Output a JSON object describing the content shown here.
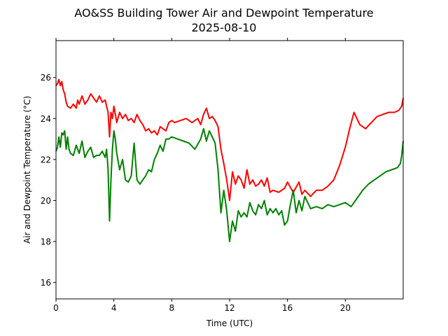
{
  "chart_data": {
    "type": "line",
    "title": "AO&SS Building Tower Air and Dewpoint Temperature",
    "subtitle": "2025-08-10",
    "xlabel": "Time (UTC)",
    "ylabel": "Air and Dewpoint Temperature (°C)",
    "xlim": [
      0,
      24
    ],
    "ylim": [
      15.2,
      27.8
    ],
    "xticks": [
      0,
      4,
      8,
      12,
      16,
      20
    ],
    "yticks": [
      16,
      18,
      20,
      22,
      24,
      26
    ],
    "grid": false,
    "colors": {
      "air": "#ff0000",
      "dewpoint": "#008000"
    },
    "series": [
      {
        "key": "air",
        "color": "#ff0000",
        "x": [
          0,
          0.1,
          0.2,
          0.3,
          0.4,
          0.5,
          0.6,
          0.7,
          0.8,
          1.0,
          1.2,
          1.4,
          1.5,
          1.6,
          1.8,
          2.0,
          2.2,
          2.4,
          2.6,
          2.8,
          3.0,
          3.2,
          3.4,
          3.5,
          3.6,
          3.7,
          3.8,
          3.9,
          4.0,
          4.2,
          4.4,
          4.6,
          4.8,
          5.0,
          5.2,
          5.4,
          5.6,
          5.8,
          6.0,
          6.2,
          6.4,
          6.6,
          6.8,
          7.0,
          7.2,
          7.4,
          7.6,
          7.8,
          8.0,
          8.2,
          8.6,
          9.0,
          9.4,
          9.8,
          10.0,
          10.2,
          10.4,
          10.6,
          10.8,
          11.0,
          11.2,
          11.4,
          11.6,
          11.8,
          12.0,
          12.2,
          12.4,
          12.6,
          12.8,
          13.0,
          13.2,
          13.4,
          13.6,
          13.8,
          14.0,
          14.2,
          14.4,
          14.6,
          14.8,
          15.0,
          15.4,
          15.8,
          16.0,
          16.4,
          16.8,
          17.0,
          17.2,
          17.6,
          18.0,
          18.4,
          18.8,
          19.2,
          19.6,
          20.0,
          20.3,
          20.6,
          20.8,
          21.0,
          21.4,
          21.8,
          22.2,
          22.6,
          23.0,
          23.4,
          23.7,
          23.8,
          23.9,
          24.0
        ],
        "values": [
          25.6,
          25.7,
          25.9,
          25.6,
          25.8,
          25.4,
          25.2,
          24.8,
          24.6,
          24.5,
          24.7,
          24.5,
          24.9,
          24.7,
          25.1,
          24.7,
          24.9,
          25.2,
          25.0,
          24.8,
          25.1,
          24.8,
          24.9,
          24.6,
          24.3,
          23.1,
          24.3,
          24.0,
          24.6,
          23.8,
          24.3,
          24.0,
          24.2,
          23.9,
          24.0,
          23.8,
          24.2,
          23.9,
          23.7,
          23.4,
          23.5,
          23.3,
          23.4,
          23.2,
          23.6,
          23.5,
          23.4,
          23.8,
          23.9,
          23.8,
          23.9,
          24.0,
          23.8,
          24.0,
          23.7,
          24.2,
          24.5,
          24.0,
          24.1,
          23.9,
          23.6,
          22.5,
          21.8,
          21.0,
          20.0,
          21.4,
          20.8,
          21.2,
          21.0,
          20.6,
          21.5,
          20.8,
          21.0,
          20.7,
          20.8,
          21.0,
          20.7,
          21.1,
          20.4,
          20.5,
          20.4,
          20.6,
          20.9,
          20.4,
          20.9,
          20.3,
          20.5,
          20.2,
          20.5,
          20.5,
          20.7,
          21.0,
          21.7,
          22.6,
          23.5,
          24.3,
          24.0,
          23.7,
          23.5,
          23.8,
          24.1,
          24.2,
          24.3,
          24.3,
          24.4,
          24.5,
          24.6,
          25.0
        ]
      },
      {
        "key": "dewpoint",
        "color": "#008000",
        "x": [
          0,
          0.1,
          0.2,
          0.3,
          0.4,
          0.5,
          0.6,
          0.7,
          0.8,
          0.9,
          1.0,
          1.2,
          1.4,
          1.6,
          1.8,
          2.0,
          2.2,
          2.4,
          2.6,
          2.8,
          3.0,
          3.2,
          3.4,
          3.5,
          3.6,
          3.7,
          3.8,
          3.9,
          4.0,
          4.1,
          4.2,
          4.4,
          4.6,
          4.8,
          5.0,
          5.2,
          5.4,
          5.6,
          5.8,
          6.0,
          6.2,
          6.4,
          6.6,
          6.8,
          7.0,
          7.2,
          7.4,
          7.6,
          7.8,
          8.0,
          8.4,
          8.8,
          9.2,
          9.6,
          10.0,
          10.2,
          10.4,
          10.6,
          10.8,
          11.0,
          11.2,
          11.4,
          11.6,
          11.8,
          12.0,
          12.2,
          12.4,
          12.6,
          12.8,
          13.0,
          13.2,
          13.4,
          13.6,
          13.8,
          14.0,
          14.2,
          14.4,
          14.6,
          14.8,
          15.0,
          15.2,
          15.4,
          15.6,
          15.8,
          16.0,
          16.2,
          16.4,
          16.6,
          16.8,
          17.0,
          17.2,
          17.6,
          18.0,
          18.4,
          18.8,
          19.2,
          19.6,
          20.0,
          20.4,
          20.8,
          21.2,
          21.6,
          22.0,
          22.4,
          22.8,
          23.2,
          23.6,
          23.8,
          23.9,
          24.0
        ],
        "values": [
          22.4,
          22.6,
          23.1,
          22.6,
          23.3,
          23.2,
          23.4,
          22.5,
          23.1,
          22.5,
          22.3,
          22.2,
          22.7,
          22.3,
          22.9,
          22.1,
          22.4,
          22.6,
          22.1,
          22.2,
          22.2,
          22.4,
          22.1,
          22.5,
          21.5,
          19.0,
          21.0,
          22.5,
          23.4,
          23.0,
          22.3,
          21.5,
          22.0,
          21.0,
          20.9,
          21.2,
          22.8,
          21.0,
          20.8,
          21.0,
          21.2,
          21.5,
          21.4,
          22.0,
          22.3,
          22.7,
          22.4,
          23.0,
          23.0,
          23.1,
          23.0,
          22.9,
          22.8,
          22.5,
          23.0,
          23.5,
          22.9,
          23.4,
          23.1,
          22.8,
          21.5,
          19.4,
          20.5,
          19.5,
          18.0,
          19.0,
          18.5,
          19.5,
          19.2,
          19.4,
          19.2,
          19.9,
          19.5,
          19.3,
          19.8,
          19.6,
          20.0,
          19.3,
          19.6,
          19.4,
          19.6,
          19.3,
          19.5,
          18.8,
          19.0,
          19.8,
          20.5,
          19.4,
          20.0,
          19.5,
          20.2,
          19.6,
          19.7,
          19.6,
          19.8,
          19.7,
          19.8,
          19.9,
          19.7,
          20.1,
          20.5,
          20.8,
          21.0,
          21.2,
          21.4,
          21.5,
          21.6,
          21.8,
          22.2,
          22.9
        ]
      }
    ]
  }
}
